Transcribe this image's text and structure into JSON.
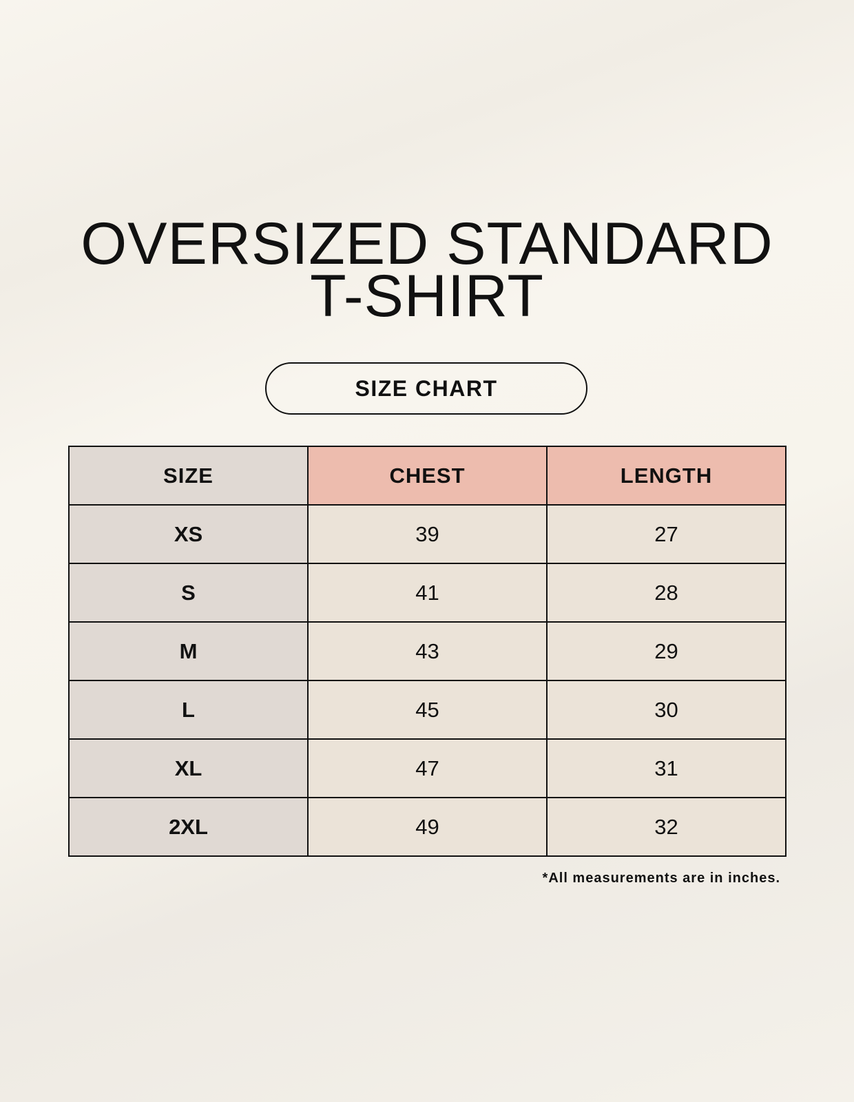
{
  "title": {
    "line1": "OVERSIZED STANDARD",
    "line2": "T-SHIRT"
  },
  "badge": "SIZE CHART",
  "table": {
    "headers": [
      "SIZE",
      "CHEST",
      "LENGTH"
    ],
    "rows": [
      [
        "XS",
        "39",
        "27"
      ],
      [
        "S",
        "41",
        "28"
      ],
      [
        "M",
        "43",
        "29"
      ],
      [
        "L",
        "45",
        "30"
      ],
      [
        "XL",
        "47",
        "31"
      ],
      [
        "2XL",
        "49",
        "32"
      ]
    ]
  },
  "footnote": "*All measurements are in inches.",
  "colors": {
    "size_column": "#e0d9d3",
    "header_accent": "#edbcae",
    "cell": "#ebe3d8"
  }
}
